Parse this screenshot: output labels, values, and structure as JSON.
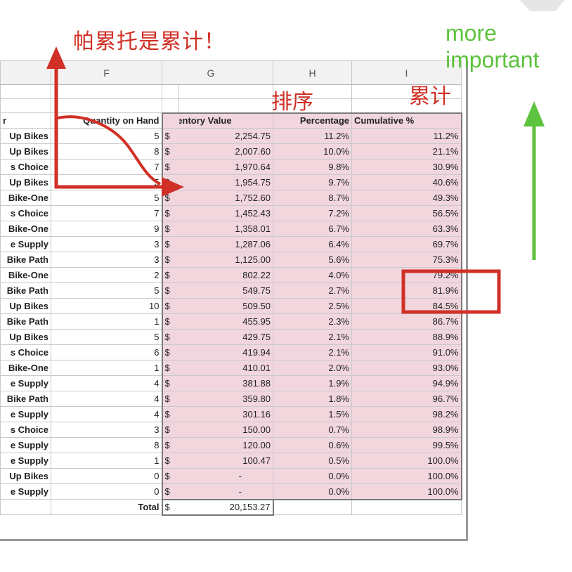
{
  "annotations": {
    "title": "帕累托是累计！",
    "sort": "排序",
    "cumulative": "累计",
    "more_line1": "more",
    "more_line2": "important"
  },
  "sheet": {
    "columns": [
      "",
      "F",
      "G",
      "H",
      "I"
    ],
    "headers": {
      "supplier": "r",
      "quantity": "Quantity on Hand",
      "inventory_value": "Inventory Value",
      "percentage": "Percentage",
      "cumulative": "Cumulative %"
    },
    "rows": [
      {
        "supplier": "Up Bikes",
        "qty": "5",
        "cur": "$",
        "value": "2,254.75",
        "pct": "11.2%",
        "cum": "11.2%"
      },
      {
        "supplier": "Up Bikes",
        "qty": "8",
        "cur": "$",
        "value": "2,007.60",
        "pct": "10.0%",
        "cum": "21.1%"
      },
      {
        "supplier": "s Choice",
        "qty": "7",
        "cur": "$",
        "value": "1,970.64",
        "pct": "9.8%",
        "cum": "30.9%"
      },
      {
        "supplier": "Up Bikes",
        "qty": "5",
        "cur": "$",
        "value": "1,954.75",
        "pct": "9.7%",
        "cum": "40.6%"
      },
      {
        "supplier": "Bike-One",
        "qty": "5",
        "cur": "$",
        "value": "1,752.60",
        "pct": "8.7%",
        "cum": "49.3%"
      },
      {
        "supplier": "s Choice",
        "qty": "7",
        "cur": "$",
        "value": "1,452.43",
        "pct": "7.2%",
        "cum": "56.5%"
      },
      {
        "supplier": "Bike-One",
        "qty": "9",
        "cur": "$",
        "value": "1,358.01",
        "pct": "6.7%",
        "cum": "63.3%"
      },
      {
        "supplier": "e Supply",
        "qty": "3",
        "cur": "$",
        "value": "1,287.06",
        "pct": "6.4%",
        "cum": "69.7%"
      },
      {
        "supplier": "Bike Path",
        "qty": "3",
        "cur": "$",
        "value": "1,125.00",
        "pct": "5.6%",
        "cum": "75.3%"
      },
      {
        "supplier": "Bike-One",
        "qty": "2",
        "cur": "$",
        "value": "802.22",
        "pct": "4.0%",
        "cum": "79.2%"
      },
      {
        "supplier": "Bike Path",
        "qty": "5",
        "cur": "$",
        "value": "549.75",
        "pct": "2.7%",
        "cum": "81.9%"
      },
      {
        "supplier": "Up Bikes",
        "qty": "10",
        "cur": "$",
        "value": "509.50",
        "pct": "2.5%",
        "cum": "84.5%"
      },
      {
        "supplier": "Bike Path",
        "qty": "1",
        "cur": "$",
        "value": "455.95",
        "pct": "2.3%",
        "cum": "86.7%"
      },
      {
        "supplier": "Up Bikes",
        "qty": "5",
        "cur": "$",
        "value": "429.75",
        "pct": "2.1%",
        "cum": "88.9%"
      },
      {
        "supplier": "s Choice",
        "qty": "6",
        "cur": "$",
        "value": "419.94",
        "pct": "2.1%",
        "cum": "91.0%"
      },
      {
        "supplier": "Bike-One",
        "qty": "1",
        "cur": "$",
        "value": "410.01",
        "pct": "2.0%",
        "cum": "93.0%"
      },
      {
        "supplier": "e Supply",
        "qty": "4",
        "cur": "$",
        "value": "381.88",
        "pct": "1.9%",
        "cum": "94.9%"
      },
      {
        "supplier": "Bike Path",
        "qty": "4",
        "cur": "$",
        "value": "359.80",
        "pct": "1.8%",
        "cum": "96.7%"
      },
      {
        "supplier": "e Supply",
        "qty": "4",
        "cur": "$",
        "value": "301.16",
        "pct": "1.5%",
        "cum": "98.2%"
      },
      {
        "supplier": "s Choice",
        "qty": "3",
        "cur": "$",
        "value": "150.00",
        "pct": "0.7%",
        "cum": "98.9%"
      },
      {
        "supplier": "e Supply",
        "qty": "8",
        "cur": "$",
        "value": "120.00",
        "pct": "0.6%",
        "cum": "99.5%"
      },
      {
        "supplier": "e Supply",
        "qty": "1",
        "cur": "$",
        "value": "100.47",
        "pct": "0.5%",
        "cum": "100.0%"
      },
      {
        "supplier": "Up Bikes",
        "qty": "0",
        "cur": "$",
        "value": "-",
        "pct": "0.0%",
        "cum": "100.0%"
      },
      {
        "supplier": "e Supply",
        "qty": "0",
        "cur": "$",
        "value": "-",
        "pct": "0.0%",
        "cum": "100.0%"
      }
    ],
    "total": {
      "label": "Total",
      "cur": "$",
      "value": "20,153.27"
    }
  },
  "colors": {
    "highlight_fill": "#f1d6de",
    "annotation_red": "#d03025",
    "annotation_green": "#5dc23d"
  },
  "icons": [
    "arrow-up-icon",
    "arrow-right-icon",
    "arrow-up-green-icon"
  ]
}
